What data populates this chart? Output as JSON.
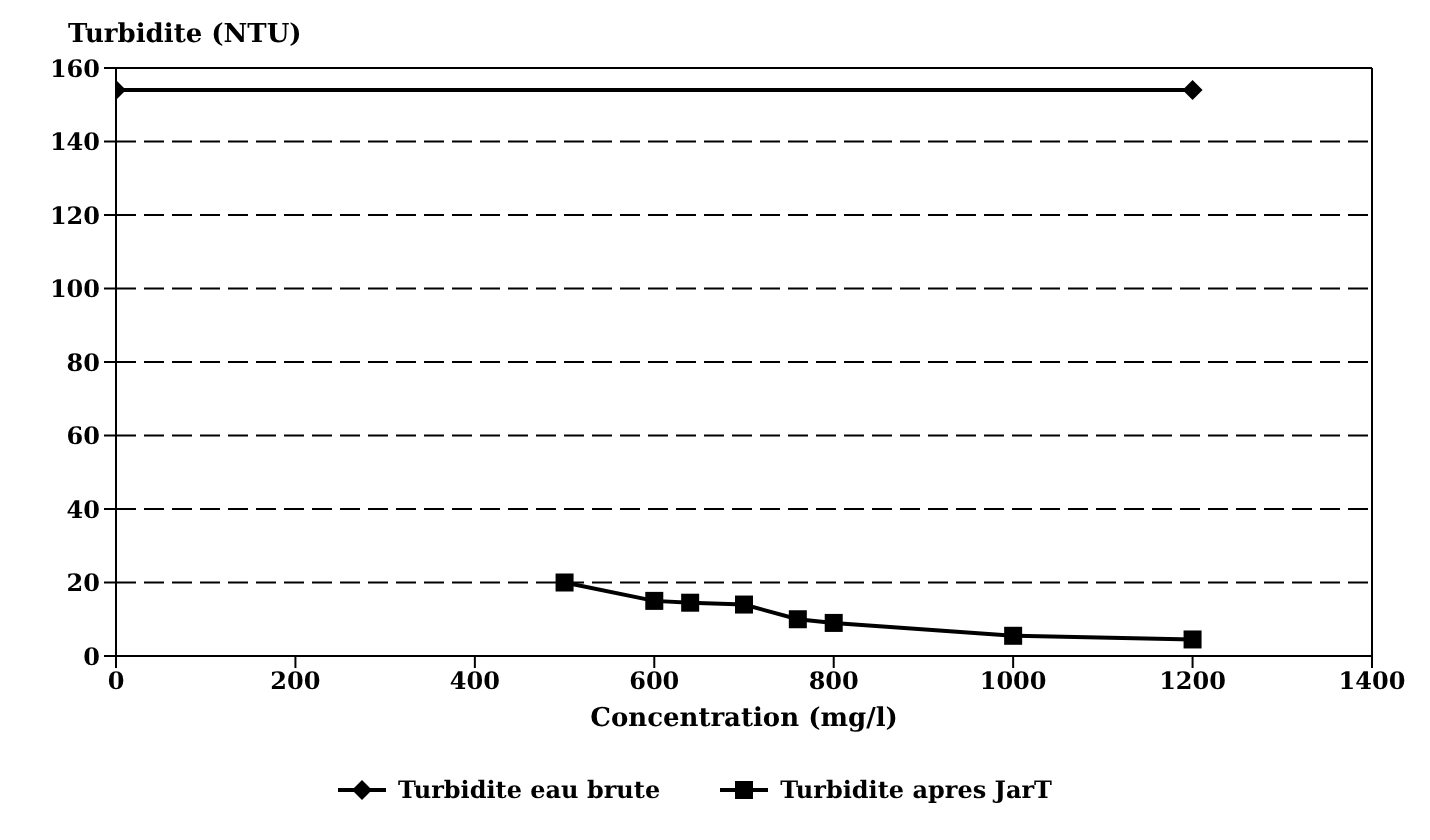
{
  "chart_data": {
    "type": "line",
    "ylabel": "Turbidite (NTU)",
    "xlabel": "Concentration (mg/l)",
    "xlim": [
      0,
      1400
    ],
    "xticks": [
      0,
      200,
      400,
      600,
      800,
      1000,
      1200,
      1400
    ],
    "ylim": [
      0,
      160
    ],
    "yticks": [
      0,
      20,
      40,
      60,
      80,
      100,
      120,
      140,
      160
    ],
    "grid": "y",
    "legend": "bottom",
    "line_style": "solid",
    "series": [
      {
        "name": "Turbidite eau brute",
        "color": "#000000",
        "marker": "diamond",
        "x": [
          0,
          1200
        ],
        "values": [
          154,
          154
        ]
      },
      {
        "name": "Turbidite apres JarT",
        "color": "#000000",
        "marker": "square",
        "x": [
          500,
          600,
          640,
          700,
          760,
          800,
          1000,
          1200
        ],
        "values": [
          20,
          15,
          14.5,
          14,
          10,
          9,
          5.5,
          4.5
        ]
      }
    ]
  }
}
